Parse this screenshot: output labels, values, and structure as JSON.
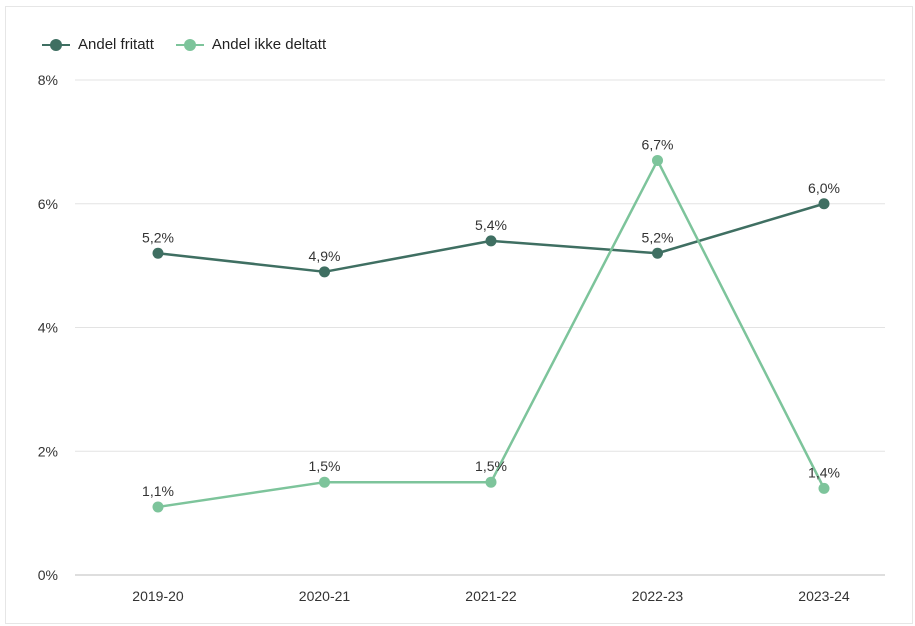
{
  "chart_data": {
    "type": "line",
    "title": "",
    "xlabel": "",
    "ylabel": "",
    "categories": [
      "2019-20",
      "2020-21",
      "2021-22",
      "2022-23",
      "2023-24"
    ],
    "ylim": [
      0,
      8
    ],
    "yticks": [
      0,
      2,
      4,
      6,
      8
    ],
    "ytick_labels": [
      "0%",
      "2%",
      "4%",
      "6%",
      "8%"
    ],
    "grid": true,
    "legend_position": "top-left",
    "series": [
      {
        "name": "Andel fritatt",
        "color": "#3f6f62",
        "values": [
          5.2,
          4.9,
          5.4,
          5.2,
          6.0
        ],
        "labels": [
          "5,2%",
          "4,9%",
          "5,4%",
          "5,2%",
          "6,0%"
        ]
      },
      {
        "name": "Andel ikke deltatt",
        "color": "#7dc49b",
        "values": [
          1.1,
          1.5,
          1.5,
          6.7,
          1.4
        ],
        "labels": [
          "1,1%",
          "1,5%",
          "1,5%",
          "6,7%",
          "1,4%"
        ]
      }
    ]
  }
}
